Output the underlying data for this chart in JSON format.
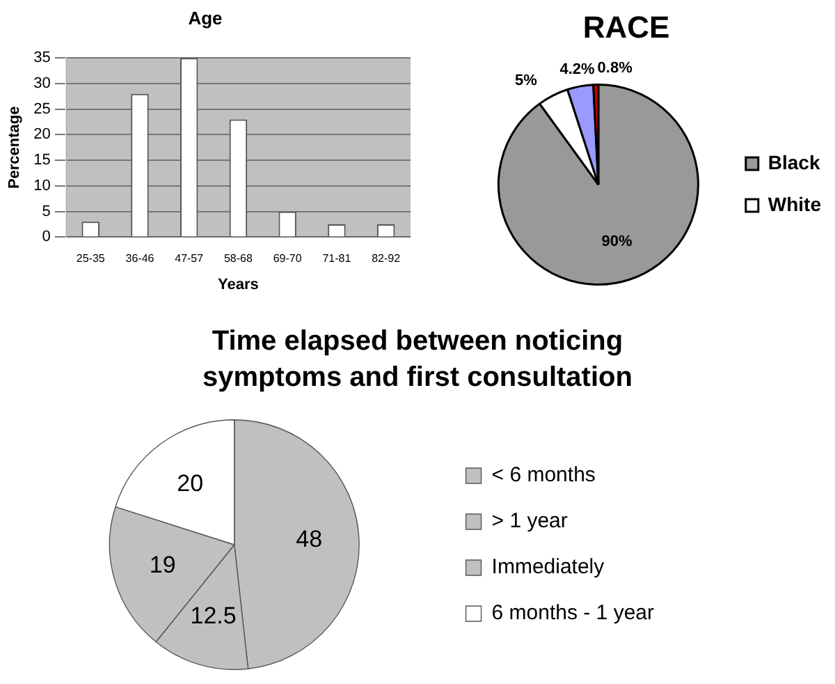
{
  "chart_data": [
    {
      "type": "bar",
      "title": "Age",
      "xlabel": "Years",
      "ylabel": "Percentage",
      "categories": [
        "25-35",
        "36-46",
        "47-57",
        "58-68",
        "69-70",
        "71-81",
        "82-92"
      ],
      "values": [
        3,
        28,
        35,
        23,
        5,
        2.5,
        2.5
      ],
      "color": "#ffffff",
      "ylim": [
        0,
        35
      ],
      "yticks": [
        0,
        5,
        10,
        15,
        20,
        25,
        30,
        35
      ],
      "grid": "y",
      "legend": false
    },
    {
      "type": "pie",
      "title": "RACE",
      "categories": [
        "Black",
        "White",
        null,
        null
      ],
      "values": [
        90,
        5,
        4.2,
        0.8
      ],
      "colors": [
        "#999999",
        "#ffffff",
        "#9999ff",
        "#cc0000"
      ],
      "value_labels": [
        "90%",
        "5%",
        "4.2%",
        "0.8%"
      ],
      "legend": "right"
    },
    {
      "type": "pie",
      "title": "Time elapsed between noticing symptoms and first consultation",
      "categories": [
        "< 6 months",
        "> 1 year",
        "Immediately",
        "6 months - 1 year"
      ],
      "values": [
        48,
        12.5,
        19,
        20
      ],
      "colors": [
        "#c0c0c0",
        "#c0c0c0",
        "#c0c0c0",
        "#ffffff"
      ],
      "data_labels": true,
      "legend": "right"
    }
  ]
}
